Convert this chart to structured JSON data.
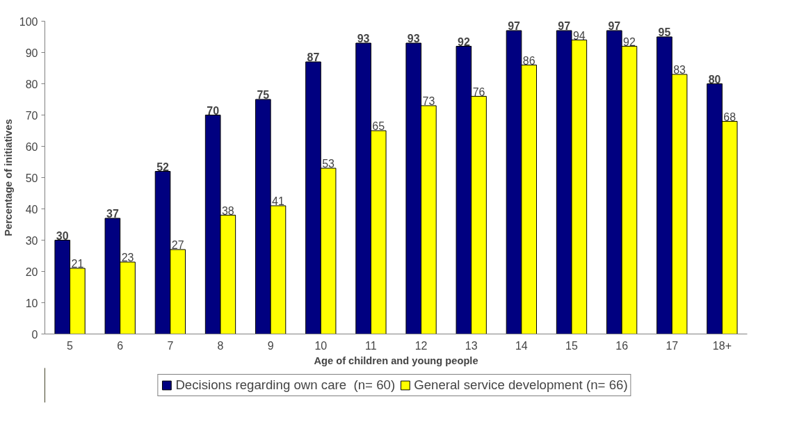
{
  "chart_data": {
    "type": "bar",
    "xlabel": "Age of children and young people",
    "ylabel": "Percentage of initiatives",
    "categories": [
      "5",
      "6",
      "7",
      "8",
      "9",
      "10",
      "11",
      "12",
      "13",
      "14",
      "15",
      "16",
      "17",
      "18+"
    ],
    "series": [
      {
        "name": "Decisions regarding own care  (n= 60)",
        "color": "#000080",
        "values": [
          30,
          37,
          52,
          70,
          75,
          87,
          93,
          93,
          92,
          97,
          97,
          97,
          95,
          80
        ]
      },
      {
        "name": "General service development (n= 66)",
        "color": "#ffff00",
        "values": [
          21,
          23,
          27,
          38,
          41,
          53,
          65,
          73,
          76,
          86,
          94,
          92,
          83,
          68
        ]
      }
    ],
    "ylim": [
      0,
      100
    ],
    "yticks": [
      0,
      10,
      20,
      30,
      40,
      50,
      60,
      70,
      80,
      90,
      100
    ],
    "grid": false,
    "legend": "bottom",
    "data_labels": true
  }
}
